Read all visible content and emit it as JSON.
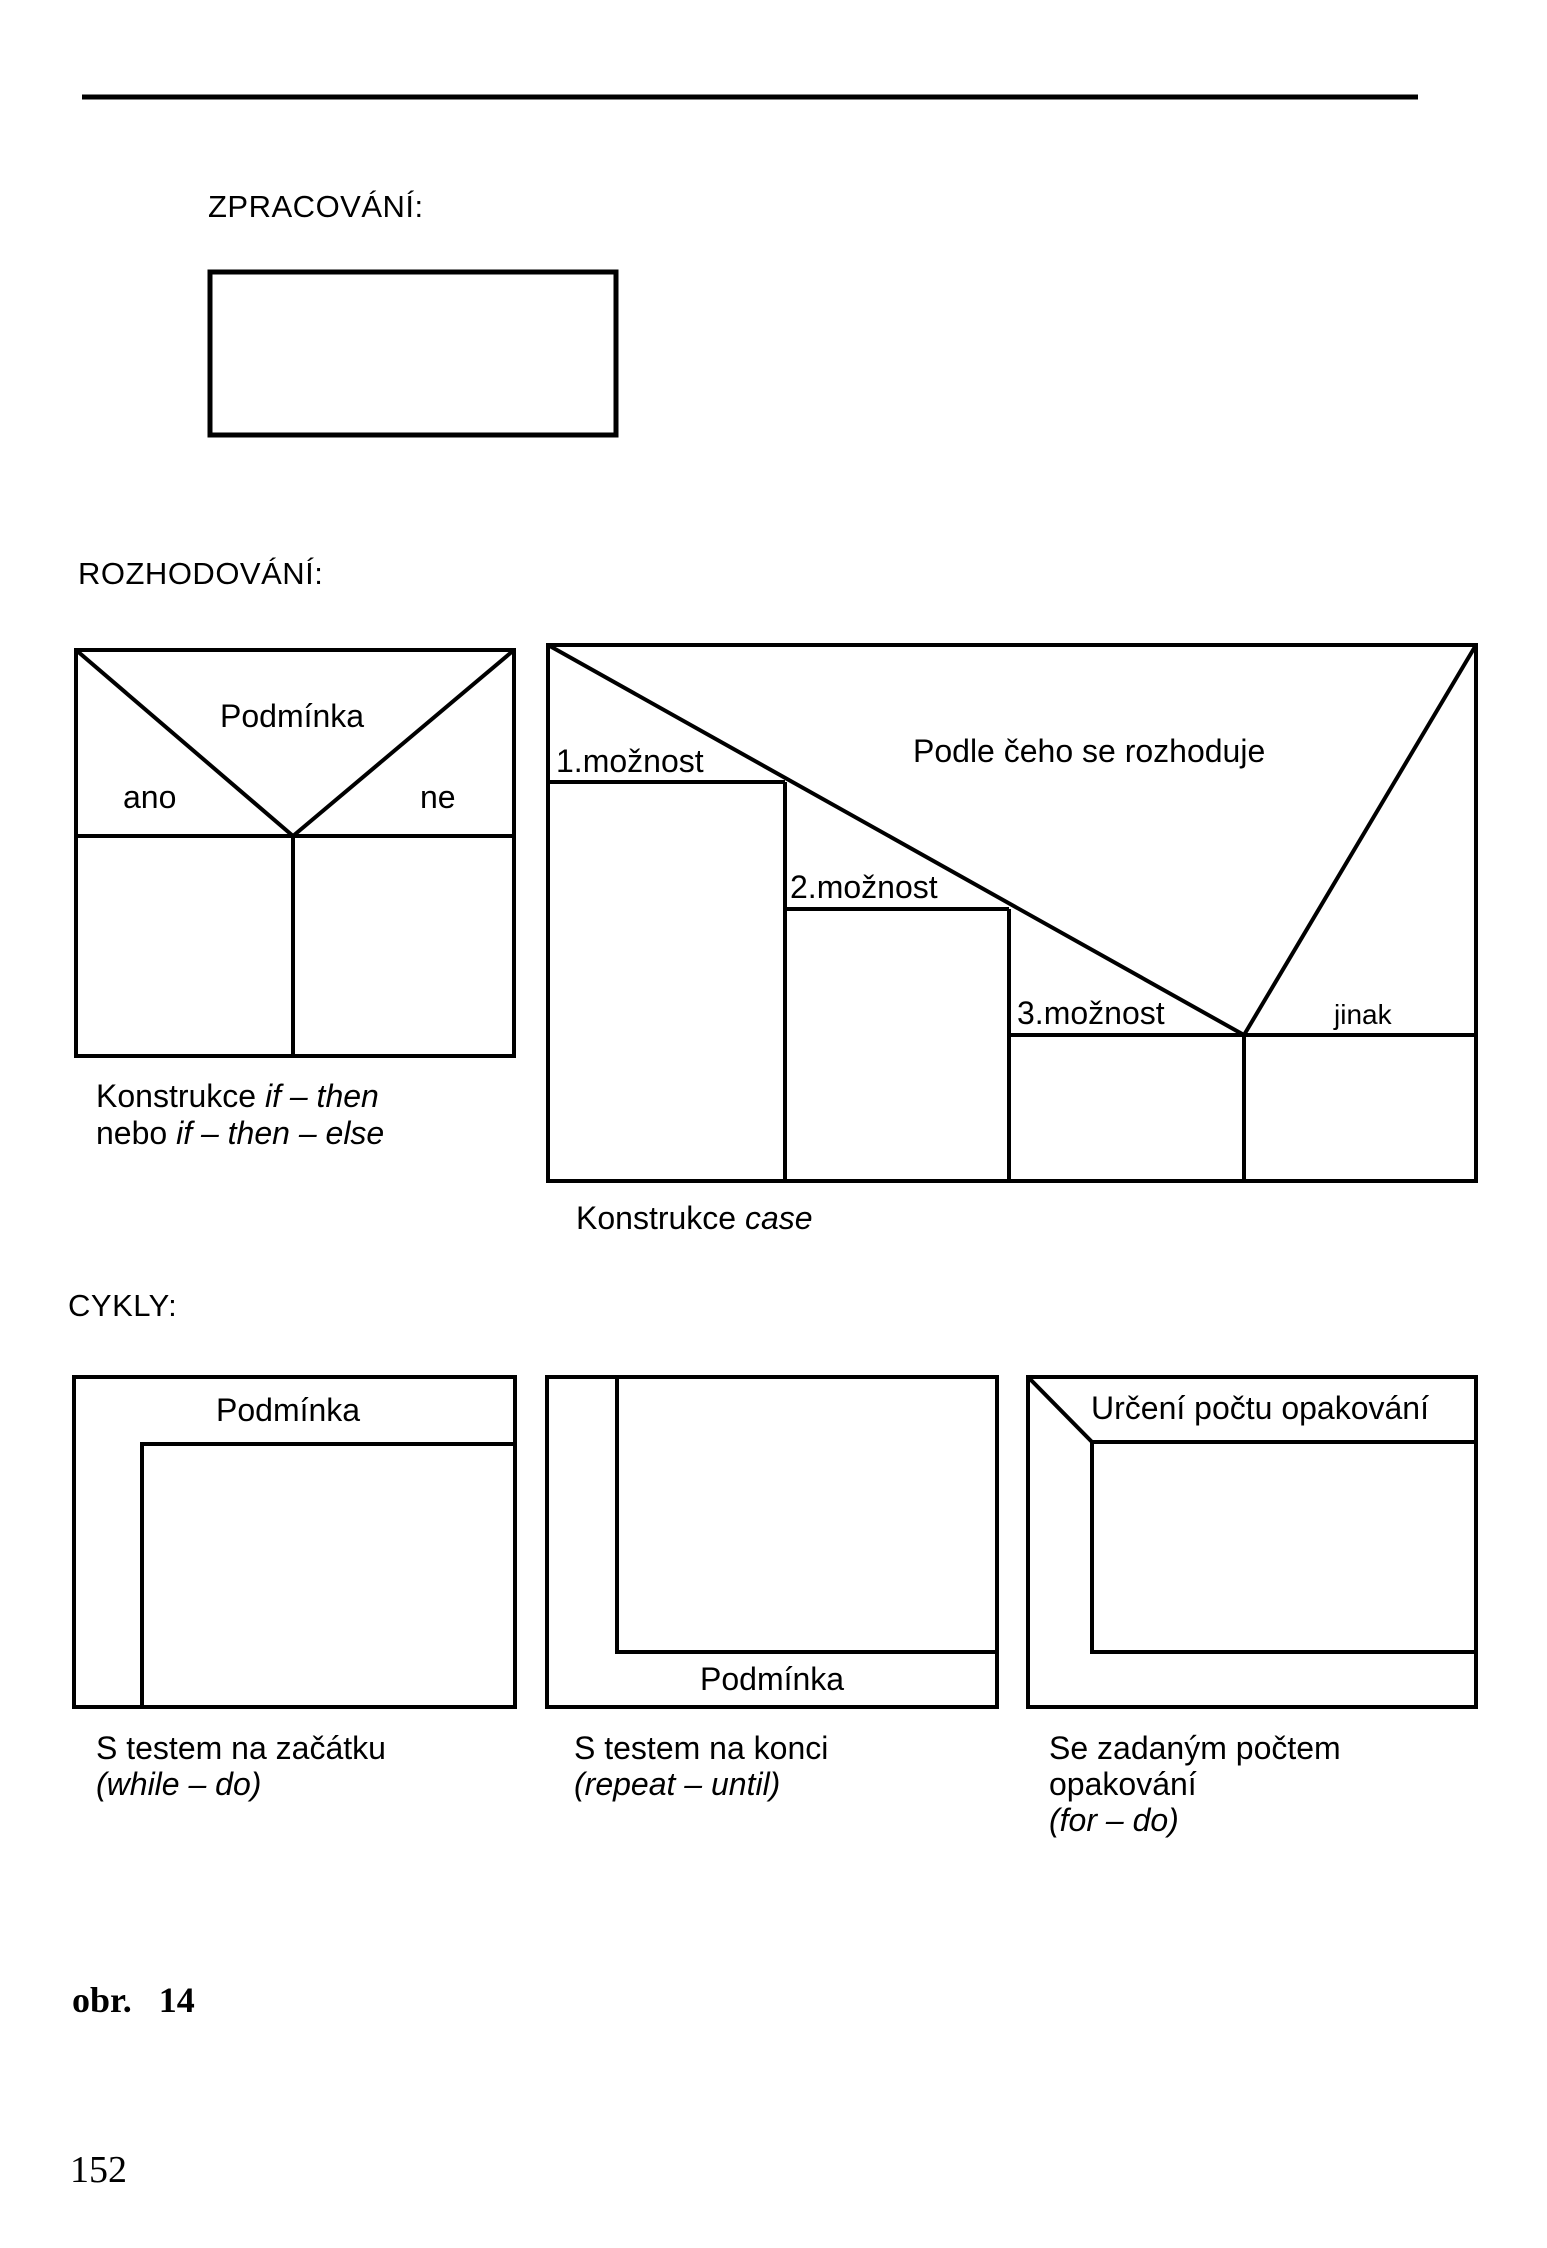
{
  "sections": {
    "processing": "ZPRACOVÁNÍ:",
    "decision": "ROZHODOVÁNÍ:",
    "loops": "CYKLY:"
  },
  "if_block": {
    "condition": "Podmínka",
    "yes": "ano",
    "no": "ne",
    "caption_line1_prefix": "Konstrukce ",
    "caption_line1_italic": "if – then",
    "caption_line2_prefix": "nebo ",
    "caption_line2_italic": "if – then – else"
  },
  "case_block": {
    "title": "Podle čeho se rozhoduje",
    "option1": "1.možnost",
    "option2": "2.možnost",
    "option3": "3.možnost",
    "otherwise": "jinak",
    "caption_prefix": "Konstrukce ",
    "caption_italic": "case"
  },
  "while_block": {
    "condition": "Podmínka",
    "caption_line1": "S testem na začátku",
    "caption_line2": "(while – do)"
  },
  "repeat_block": {
    "condition": "Podmínka",
    "caption_line1": "S testem na konci",
    "caption_line2": "(repeat – until)"
  },
  "for_block": {
    "header": "Určení počtu opakování",
    "caption_line1": "Se zadaným počtem",
    "caption_line2": "opakování",
    "caption_line3": "(for – do)"
  },
  "figure_label": "obr.   14",
  "page_number": "152"
}
